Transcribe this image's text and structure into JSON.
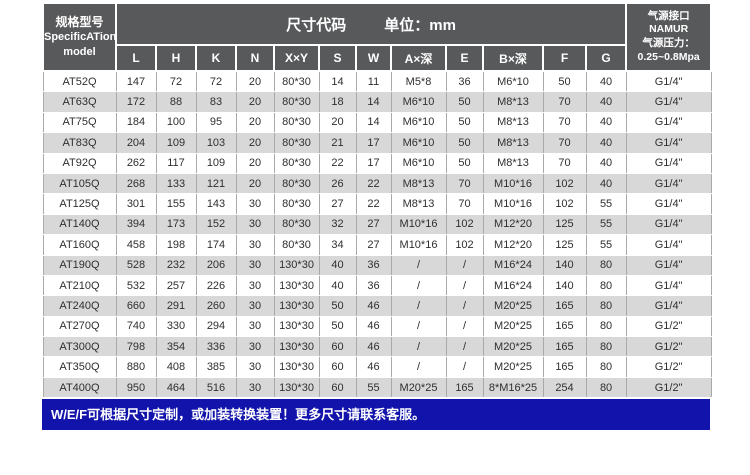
{
  "header": {
    "model_title_zh": "规格型号",
    "model_title_en1": "SpecificATion",
    "model_title_en2": "model",
    "dim_title": "尺寸代码",
    "unit_label": "单位：mm",
    "air": {
      "line1": "气源接口",
      "line2": "NAMUR",
      "line3": "气源压力：",
      "line4": "0.25~0.8Mpa"
    },
    "columns": [
      "L",
      "H",
      "K",
      "N",
      "X×Y",
      "S",
      "W",
      "A×深",
      "E",
      "B×深",
      "F",
      "G"
    ]
  },
  "table": {
    "rows": [
      [
        "AT52Q",
        "147",
        "72",
        "72",
        "20",
        "80*30",
        "14",
        "11",
        "M5*8",
        "36",
        "M6*10",
        "50",
        "40",
        "G1/4\""
      ],
      [
        "AT63Q",
        "172",
        "88",
        "83",
        "20",
        "80*30",
        "18",
        "14",
        "M6*10",
        "50",
        "M8*13",
        "70",
        "40",
        "G1/4\""
      ],
      [
        "AT75Q",
        "184",
        "100",
        "95",
        "20",
        "80*30",
        "20",
        "14",
        "M6*10",
        "50",
        "M8*13",
        "70",
        "40",
        "G1/4\""
      ],
      [
        "AT83Q",
        "204",
        "109",
        "103",
        "20",
        "80*30",
        "21",
        "17",
        "M6*10",
        "50",
        "M8*13",
        "70",
        "40",
        "G1/4\""
      ],
      [
        "AT92Q",
        "262",
        "117",
        "109",
        "20",
        "80*30",
        "22",
        "17",
        "M6*10",
        "50",
        "M8*13",
        "70",
        "40",
        "G1/4\""
      ],
      [
        "AT105Q",
        "268",
        "133",
        "121",
        "20",
        "80*30",
        "26",
        "22",
        "M8*13",
        "70",
        "M10*16",
        "102",
        "40",
        "G1/4\""
      ],
      [
        "AT125Q",
        "301",
        "155",
        "143",
        "30",
        "80*30",
        "27",
        "22",
        "M8*13",
        "70",
        "M10*16",
        "102",
        "55",
        "G1/4\""
      ],
      [
        "AT140Q",
        "394",
        "173",
        "152",
        "30",
        "80*30",
        "32",
        "27",
        "M10*16",
        "102",
        "M12*20",
        "125",
        "55",
        "G1/4\""
      ],
      [
        "AT160Q",
        "458",
        "198",
        "174",
        "30",
        "80*30",
        "34",
        "27",
        "M10*16",
        "102",
        "M12*20",
        "125",
        "55",
        "G1/4\""
      ],
      [
        "AT190Q",
        "528",
        "232",
        "206",
        "30",
        "130*30",
        "40",
        "36",
        "/",
        "/",
        "M16*24",
        "140",
        "80",
        "G1/4\""
      ],
      [
        "AT210Q",
        "532",
        "257",
        "226",
        "30",
        "130*30",
        "40",
        "36",
        "/",
        "/",
        "M16*24",
        "140",
        "80",
        "G1/4\""
      ],
      [
        "AT240Q",
        "660",
        "291",
        "260",
        "30",
        "130*30",
        "50",
        "46",
        "/",
        "/",
        "M20*25",
        "165",
        "80",
        "G1/4\""
      ],
      [
        "AT270Q",
        "740",
        "330",
        "294",
        "30",
        "130*30",
        "50",
        "46",
        "/",
        "/",
        "M20*25",
        "165",
        "80",
        "G1/2\""
      ],
      [
        "AT300Q",
        "798",
        "354",
        "336",
        "30",
        "130*30",
        "60",
        "46",
        "/",
        "/",
        "M20*25",
        "165",
        "80",
        "G1/2\""
      ],
      [
        "AT350Q",
        "880",
        "408",
        "385",
        "30",
        "130*30",
        "60",
        "46",
        "/",
        "/",
        "M20*25",
        "165",
        "80",
        "G1/2\""
      ],
      [
        "AT400Q",
        "950",
        "464",
        "516",
        "30",
        "130*30",
        "60",
        "55",
        "M20*25",
        "165",
        "8*M16*25",
        "254",
        "80",
        "G1/2\""
      ]
    ]
  },
  "footer": {
    "note": "W/E/F可根据尺寸定制，或加装转换装置！更多尺寸请联系客服。"
  },
  "colors": {
    "header_bg": "#58595b",
    "stripe_bg": "#d8d8d8",
    "note_bg": "#1113ab",
    "grid": "#a9a9a9"
  }
}
